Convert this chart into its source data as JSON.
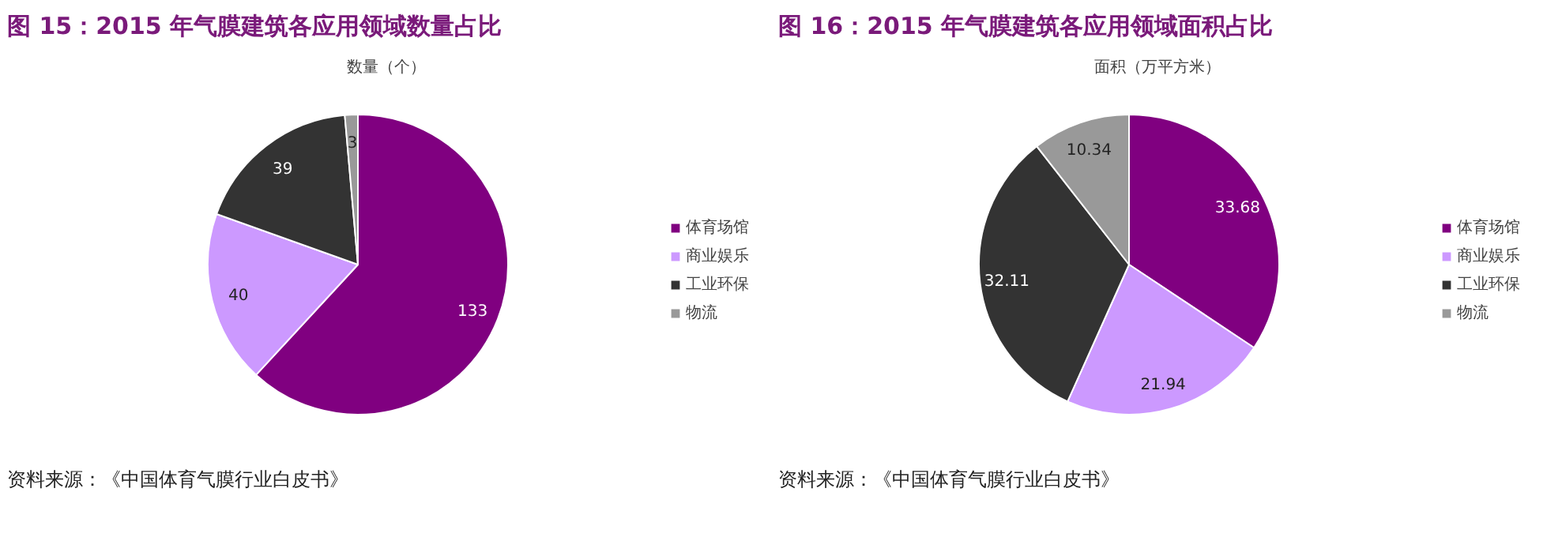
{
  "chart_data": [
    {
      "type": "pie",
      "title": "图 15：2015 年气膜建筑各应用领域数量占比",
      "subtitle": "数量（个）",
      "categories": [
        "体育场馆",
        "商业娱乐",
        "工业环保",
        "物流"
      ],
      "values": [
        133,
        40,
        39,
        3
      ],
      "colors": [
        "#800080",
        "#cc99ff",
        "#333333",
        "#999999"
      ],
      "data_labels": true,
      "legend": "right",
      "annotations": [
        "资料来源：《中国体育气膜行业白皮书》"
      ]
    },
    {
      "type": "pie",
      "title": "图 16：2015 年气膜建筑各应用领域面积占比",
      "subtitle": "面积（万平方米）",
      "categories": [
        "体育场馆",
        "商业娱乐",
        "工业环保",
        "物流"
      ],
      "values": [
        33.68,
        21.94,
        32.11,
        10.34
      ],
      "colors": [
        "#800080",
        "#cc99ff",
        "#333333",
        "#999999"
      ],
      "data_labels": true,
      "legend": "right",
      "annotations": [
        "资料来源：《中国体育气膜行业白皮书》"
      ]
    }
  ]
}
